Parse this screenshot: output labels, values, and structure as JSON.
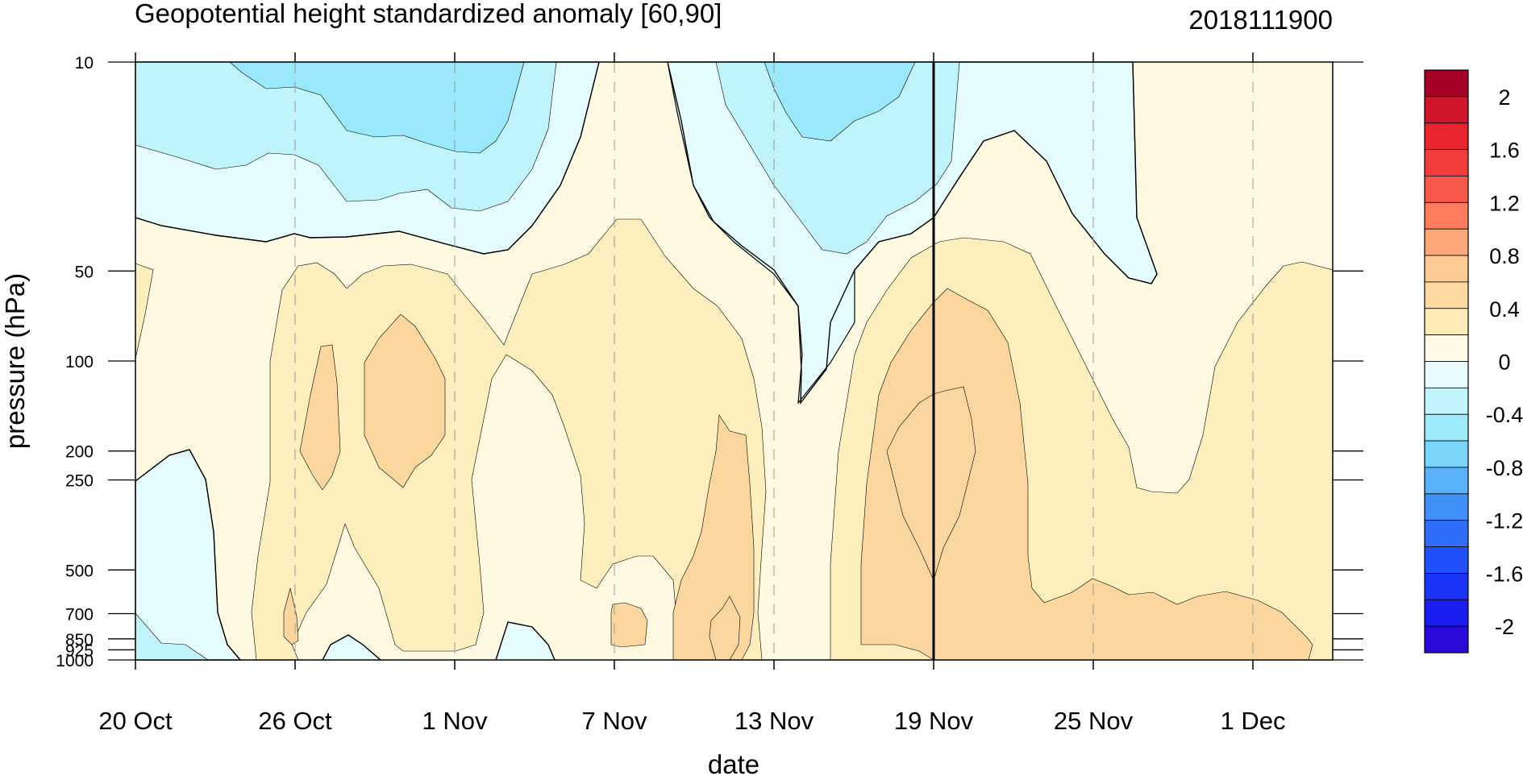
{
  "chart_data": {
    "type": "heatmap",
    "title": "Geopotential height standardized anomaly [60,90]",
    "date_label": "2018111900",
    "xlabel": "date",
    "ylabel": "pressure (hPa)",
    "x_ticks": [
      "20 Oct",
      "26 Oct",
      "1 Nov",
      "7 Nov",
      "13 Nov",
      "19 Nov",
      "25 Nov",
      "1 Dec"
    ],
    "x_tick_days": [
      0,
      6,
      12,
      18,
      24,
      30,
      36,
      42
    ],
    "x_range_days": [
      0,
      45
    ],
    "current_date_day": 30,
    "y_ticks": [
      "10",
      "50",
      "100",
      "200",
      "250",
      "500",
      "700",
      "850",
      "925",
      "1000"
    ],
    "y_tick_values": [
      10,
      50,
      100,
      200,
      250,
      500,
      700,
      850,
      925,
      1000
    ],
    "y_range": [
      10,
      1000
    ],
    "y_scale": "log",
    "colorbar": {
      "labels": [
        "2",
        "1.6",
        "1.2",
        "0.8",
        "0.4",
        "0",
        "-0.4",
        "-0.8",
        "-1.2",
        "-1.6",
        "-2"
      ],
      "levels_top_to_bottom": [
        2.2,
        2.0,
        1.8,
        1.6,
        1.4,
        1.2,
        1.0,
        0.8,
        0.6,
        0.4,
        0.2,
        0.0,
        -0.2,
        -0.4,
        -0.6,
        -0.8,
        -1.0,
        -1.2,
        -1.4,
        -1.6,
        -1.8,
        -2.0,
        -2.2
      ],
      "colors_top_to_bottom": [
        "#a50026",
        "#d0142a",
        "#e8242f",
        "#f23b3b",
        "#f8584a",
        "#fc7c5c",
        "#fda677",
        "#fdcc95",
        "#fdd8a0",
        "#fdecb8",
        "#fffae6",
        "#e8fbfd",
        "#c2f5fb",
        "#9ceafa",
        "#7ad7fa",
        "#5ab3fa",
        "#4190fa",
        "#2f6dfa",
        "#2050fa",
        "#1a33f5",
        "#1a1ef0",
        "#2a0ad8"
      ]
    },
    "contour_colors": {
      "pos_0_0.4": "#fff9e1",
      "pos_0.4_0.8": "#fdeebd",
      "pos_0.8_1.2": "#fcd69f",
      "neg_0_-0.4": "#e5fcfe",
      "neg_-0.4_-0.8": "#bff4fc",
      "neg_-0.8_-1.2": "#99e8fb"
    }
  }
}
